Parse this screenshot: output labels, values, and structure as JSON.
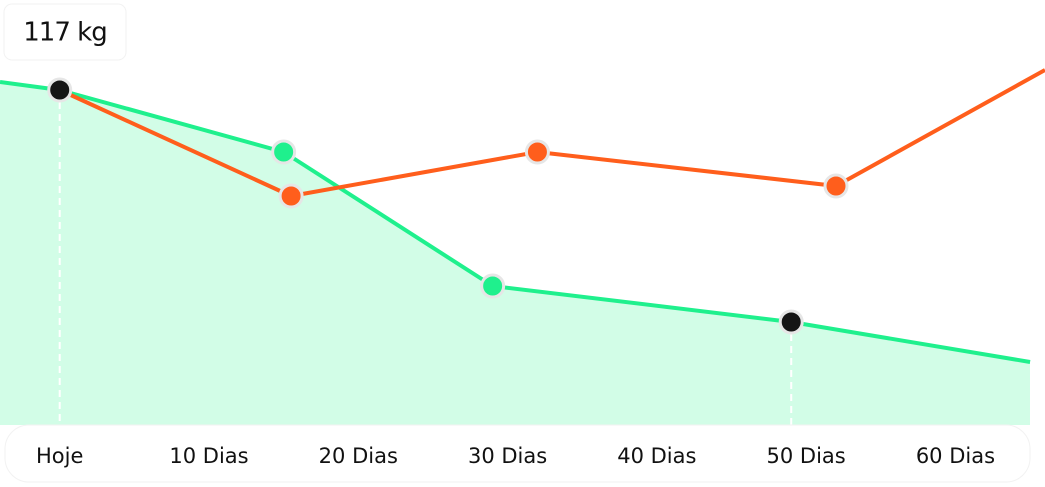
{
  "chart_data": {
    "type": "line",
    "annotation": "117 kg",
    "xlim": [
      -4,
      66
    ],
    "ylim": [
      84,
      126
    ],
    "xticks": [
      {
        "value": 0,
        "label": "Hoje"
      },
      {
        "value": 10,
        "label": "10 Dias"
      },
      {
        "value": 20,
        "label": "20 Dias"
      },
      {
        "value": 30,
        "label": "30 Dias"
      },
      {
        "value": 40,
        "label": "40 Dias"
      },
      {
        "value": 50,
        "label": "50 Dias"
      },
      {
        "value": 60,
        "label": "60 Dias"
      }
    ],
    "series": [
      {
        "color": "#1ff08d",
        "fill": "#d2fde7",
        "x": [
          -4,
          0,
          15,
          29,
          49,
          65
        ],
        "values": [
          117.8,
          117,
          110.8,
          97.4,
          93.8,
          89.8
        ],
        "markers": [
          1,
          2,
          3,
          4
        ],
        "highlighted": [
          1,
          4
        ]
      },
      {
        "color": "#ff5e1c",
        "x": [
          0,
          15.5,
          32,
          52,
          66
        ],
        "values": [
          117,
          106.4,
          110.8,
          107.4,
          119
        ],
        "markers": [
          1,
          2,
          3
        ],
        "highlighted": []
      }
    ]
  }
}
